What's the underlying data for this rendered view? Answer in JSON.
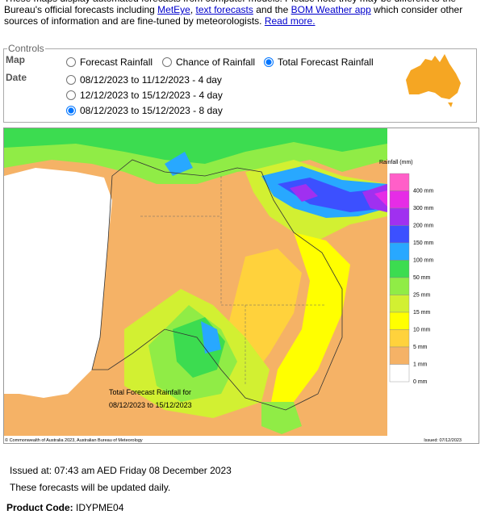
{
  "intro": [
    "These maps display automated forecasts from computer models. Please note they may be different to the Bureau's official forecasts including ",
    "MetEye",
    ", ",
    "text forecasts",
    " and the ",
    "BOM Weather app",
    " which consider other sources of information and are fine-tuned by meteorologists. ",
    "Read more."
  ],
  "controls": {
    "legend": "Controls",
    "map_label": "Map",
    "date_label": "Date",
    "map_options": [
      "Forecast Rainfall",
      "Chance of Rainfall",
      "Total Forecast Rainfall"
    ],
    "selected_map": 2,
    "date_options": [
      "08/12/2023 to 11/12/2023 - 4 day",
      "12/12/2023 to 15/12/2023 - 4 day",
      "08/12/2023 to 15/12/2023 - 8 day"
    ],
    "selected_date": 2
  },
  "map": {
    "legend_title": "Rainfall (mm)",
    "scale_colors": [
      "#ff5fc8",
      "#e62ce6",
      "#a030f0",
      "#3c50ff",
      "#28a8ff",
      "#3cdc50",
      "#90ec46",
      "#d2f032",
      "#ffff00",
      "#ffd23c",
      "#f5b266",
      "#ffffff"
    ],
    "scale_labels": [
      "400 mm",
      "300 mm",
      "200 mm",
      "150 mm",
      "100 mm",
      "50 mm",
      "25 mm",
      "15 mm",
      "10 mm",
      "5 mm",
      "1 mm",
      "0 mm"
    ],
    "caption": [
      "Total Forecast Rainfall for",
      "08/12/2023 to 15/12/2023"
    ],
    "copyright": "© Commonwealth of Australia 2023, Australian Bureau of Meteorology",
    "issued": "Issued: 07/12/2023"
  },
  "footer": {
    "issued": "Issued at: 07:43 am AED Friday 08 December 2023",
    "note": "These forecasts will be updated daily.",
    "product_label": "Product Code:",
    "product_code": "IDYPME04"
  }
}
